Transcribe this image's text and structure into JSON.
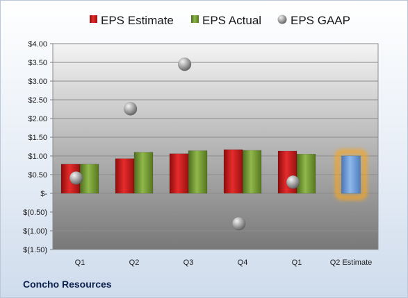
{
  "company": "Concho Resources",
  "chart_data": {
    "type": "bar",
    "categories": [
      "Q1",
      "Q2",
      "Q3",
      "Q4",
      "Q1",
      "Q2 Estimate"
    ],
    "series": [
      {
        "name": "EPS Estimate",
        "type": "bar",
        "values": [
          0.78,
          0.93,
          1.06,
          1.17,
          1.13,
          null
        ]
      },
      {
        "name": "EPS Actual",
        "type": "bar",
        "values": [
          0.78,
          1.1,
          1.14,
          1.15,
          1.05,
          null
        ]
      },
      {
        "name": "EPS GAAP",
        "type": "scatter",
        "values": [
          0.41,
          2.26,
          3.45,
          -0.81,
          0.3,
          null
        ]
      },
      {
        "name": "",
        "type": "bar",
        "highlight": true,
        "values": [
          null,
          null,
          null,
          null,
          null,
          1.0
        ]
      }
    ],
    "yticks": [
      "$4.00",
      "$3.50",
      "$3.00",
      "$2.50",
      "$2.00",
      "$1.50",
      "$1.00",
      "$0.50",
      "$-",
      "$(0.50)",
      "$(1.00)",
      "$(1.50)"
    ],
    "ylim": [
      -1.5,
      4.0
    ],
    "grid": true,
    "legend_position": "top",
    "colors": {
      "estimate": "#d62020",
      "actual": "#7aa23a",
      "gaap": "#9a9a9a",
      "highlight_bar": "#6f9fd8",
      "highlight_glow": "#f5a623"
    }
  }
}
